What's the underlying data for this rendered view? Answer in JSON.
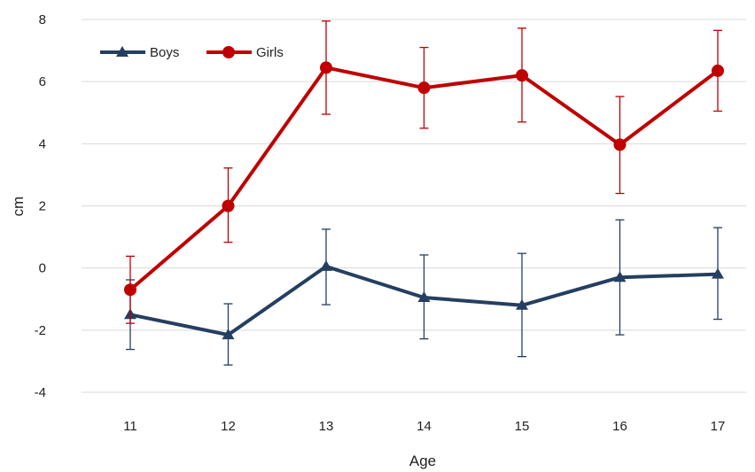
{
  "chart_data": {
    "type": "line",
    "title": "",
    "xlabel": "Age",
    "ylabel": "cm",
    "categories": [
      "11",
      "12",
      "13",
      "14",
      "15",
      "16",
      "17"
    ],
    "ylim": [
      -4,
      8
    ],
    "yticks": [
      "-4",
      "-2",
      "0",
      "2",
      "4",
      "6",
      "8"
    ],
    "grid": "horizontal",
    "legend_position": "top-left",
    "series": [
      {
        "name": "Boys",
        "color": "#243f60",
        "marker": "triangle",
        "values": [
          -1.5,
          -2.15,
          0.05,
          -0.95,
          -1.2,
          -0.3,
          -0.2
        ],
        "error_low": [
          -2.62,
          -3.12,
          -1.18,
          -2.28,
          -2.85,
          -2.15,
          -1.65
        ],
        "error_high": [
          -0.38,
          -1.15,
          1.25,
          0.42,
          0.47,
          1.55,
          1.3
        ]
      },
      {
        "name": "Girls",
        "color": "#c00000",
        "marker": "circle",
        "values": [
          -0.7,
          2.0,
          6.45,
          5.8,
          6.2,
          3.97,
          6.35
        ],
        "error_low": [
          -1.78,
          0.83,
          4.95,
          4.5,
          4.7,
          2.4,
          5.05
        ],
        "error_high": [
          0.38,
          3.22,
          7.95,
          7.1,
          7.72,
          5.52,
          7.65
        ]
      }
    ]
  }
}
